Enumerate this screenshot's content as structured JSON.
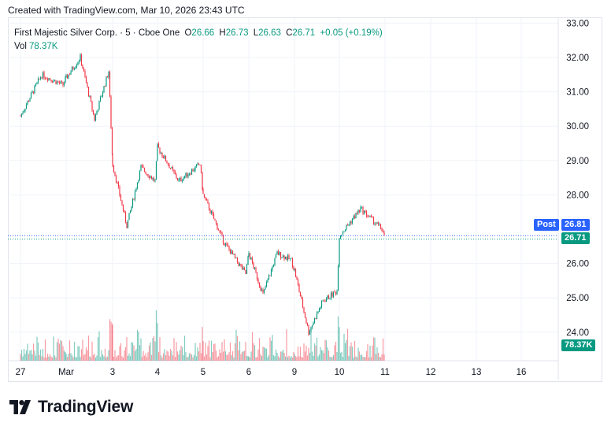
{
  "header": {
    "created": "Created with TradingView.com, Mar 10, 2026 23:43 UTC"
  },
  "legend": {
    "symbol": "First Majestic Silver Corp. · 5 · Cboe One",
    "open_label": "O",
    "open": "26.66",
    "high_label": "H",
    "high": "26.73",
    "low_label": "L",
    "low": "26.63",
    "close_label": "C",
    "close": "26.71",
    "change": "+0.05 (+0.19%)",
    "vol_label": "Vol",
    "vol_value": "78.37K"
  },
  "price_axis": {
    "post_label": "Post",
    "post_price": "26.81",
    "last_price": "26.71",
    "volume_badge": "78.37K"
  },
  "brand": {
    "name": "TradingView"
  },
  "colors": {
    "up": "#089981",
    "down": "#f23645",
    "post": "#2962ff",
    "grid": "#f0f3fa"
  },
  "chart_data": {
    "type": "candlestick",
    "interval": "5",
    "y_axis_ticks": [
      "33.00",
      "32.00",
      "31.00",
      "30.00",
      "29.00",
      "28.00",
      "26.00",
      "25.00",
      "24.00"
    ],
    "ylim": [
      23.5,
      33.0
    ],
    "x_axis_ticks": [
      "27",
      "Mar",
      "3",
      "4",
      "5",
      "6",
      "9",
      "10",
      "11",
      "12",
      "13",
      "16"
    ],
    "price_path": [
      {
        "x": "27",
        "y": 30.3
      },
      {
        "x": "27",
        "y": 31.5
      },
      {
        "x": "27",
        "y": 31.2
      },
      {
        "x": "Mar",
        "y": 31.4
      },
      {
        "x": "Mar",
        "y": 32.0
      },
      {
        "x": "Mar",
        "y": 30.2
      },
      {
        "x": "Mar",
        "y": 31.6
      },
      {
        "x": "3",
        "y": 28.9
      },
      {
        "x": "3",
        "y": 27.1
      },
      {
        "x": "3",
        "y": 28.8
      },
      {
        "x": "3",
        "y": 28.4
      },
      {
        "x": "4",
        "y": 29.4
      },
      {
        "x": "4",
        "y": 28.4
      },
      {
        "x": "4",
        "y": 28.9
      },
      {
        "x": "5",
        "y": 28.0
      },
      {
        "x": "5",
        "y": 26.6
      },
      {
        "x": "5",
        "y": 25.7
      },
      {
        "x": "6",
        "y": 26.3
      },
      {
        "x": "6",
        "y": 25.1
      },
      {
        "x": "6",
        "y": 26.3
      },
      {
        "x": "6",
        "y": 26.1
      },
      {
        "x": "9",
        "y": 25.8
      },
      {
        "x": "9",
        "y": 24.0
      },
      {
        "x": "9",
        "y": 24.9
      },
      {
        "x": "9",
        "y": 25.2
      },
      {
        "x": "10",
        "y": 26.8
      },
      {
        "x": "10",
        "y": 27.6
      },
      {
        "x": "10",
        "y": 27.0
      },
      {
        "x": "11",
        "y": 26.71
      }
    ],
    "post_price": 26.81,
    "last_price": 26.71
  }
}
